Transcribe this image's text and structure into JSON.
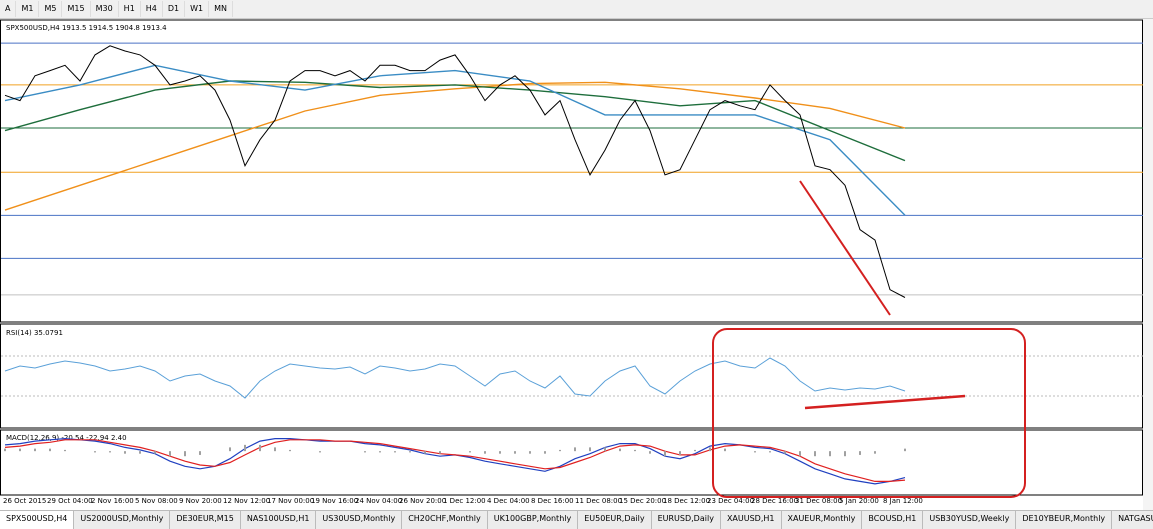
{
  "toolbar": {
    "font_button": "A",
    "timeframes": [
      "M1",
      "M5",
      "M15",
      "M30",
      "H1",
      "H4",
      "D1",
      "W1",
      "MN"
    ]
  },
  "chart_data": [
    {
      "type": "line",
      "title": "SPX500USD,H4  1913.5 1914.5 1904.8 1913.4",
      "color": "#000000",
      "values": [
        2068,
        2064,
        2083,
        2087,
        2091,
        2079,
        2099,
        2106,
        2102,
        2099,
        2091,
        2076,
        2079,
        2083,
        2072,
        2049,
        2014,
        2034,
        2049,
        2079,
        2087,
        2087,
        2083,
        2087,
        2079,
        2091,
        2091,
        2087,
        2087,
        2095,
        2099,
        2083,
        2064,
        2076,
        2083,
        2072,
        2053,
        2064,
        2034,
        2007,
        2026,
        2049,
        2064,
        2041,
        2007,
        2011,
        2034,
        2057,
        2064,
        2060,
        2057,
        2076,
        2064,
        2053,
        2014,
        2011,
        1999,
        1965,
        1957,
        1919,
        1913
      ],
      "ylim": [
        1895,
        2125
      ],
      "levels": [
        {
          "value": 2108,
          "color": "#4a72c4"
        },
        {
          "value": 2076,
          "color": "#f0a020"
        },
        {
          "value": 2043,
          "color": "#1e6e3c"
        },
        {
          "value": 2009,
          "color": "#f0a020"
        },
        {
          "value": 1976,
          "color": "#4a72c4"
        },
        {
          "value": 1943,
          "color": "#4a72c4"
        },
        {
          "value": 1915,
          "color": "#c0c0c0"
        }
      ],
      "moving_averages": [
        {
          "color": "#f0901a",
          "x": [
            0,
            5,
            10,
            15,
            20,
            25,
            30,
            35,
            40,
            45,
            50,
            55,
            60
          ],
          "values": [
            1980,
            1999,
            2018,
            2037,
            2056,
            2068,
            2073,
            2077,
            2078,
            2073,
            2066,
            2058,
            2043
          ]
        },
        {
          "color": "#1e6e3c",
          "x": [
            0,
            5,
            10,
            15,
            20,
            25,
            30,
            35,
            40,
            45,
            50,
            55,
            60
          ],
          "values": [
            2041,
            2057,
            2072,
            2079,
            2078,
            2074,
            2076,
            2072,
            2067,
            2060,
            2064,
            2041,
            2018
          ]
        },
        {
          "color": "#3a8cc4",
          "x": [
            0,
            5,
            10,
            15,
            20,
            25,
            30,
            35,
            40,
            45,
            50,
            55,
            60
          ],
          "values": [
            2064,
            2076,
            2091,
            2079,
            2072,
            2083,
            2087,
            2079,
            2053,
            2053,
            2053,
            2034,
            1976
          ]
        }
      ]
    },
    {
      "type": "line",
      "title": "RSI(14) 35.0791",
      "color": "#5aa0d8",
      "values": [
        55,
        60,
        58,
        62,
        65,
        63,
        60,
        55,
        57,
        60,
        55,
        45,
        50,
        52,
        45,
        40,
        28,
        45,
        55,
        62,
        60,
        58,
        57,
        59,
        52,
        60,
        58,
        55,
        57,
        62,
        60,
        50,
        40,
        52,
        55,
        45,
        38,
        50,
        32,
        30,
        45,
        55,
        60,
        40,
        32,
        45,
        55,
        62,
        65,
        60,
        58,
        68,
        60,
        45,
        35,
        38,
        36,
        38,
        37,
        40,
        35
      ],
      "ylim": [
        0,
        100
      ],
      "levels": [
        70,
        30
      ]
    },
    {
      "type": "macd",
      "title": "MACD(12,26,9) -20.54 -22.94 2.40",
      "series": [
        {
          "color": "#2040c0",
          "values": [
            5,
            6,
            8,
            9,
            10,
            9,
            8,
            6,
            3,
            1,
            -2,
            -8,
            -12,
            -14,
            -12,
            -6,
            2,
            8,
            10,
            10,
            9,
            8,
            8,
            8,
            6,
            5,
            3,
            1,
            -2,
            -4,
            -3,
            -5,
            -8,
            -10,
            -12,
            -14,
            -16,
            -12,
            -6,
            -2,
            3,
            6,
            6,
            2,
            -4,
            -6,
            -2,
            4,
            6,
            5,
            3,
            2,
            -2,
            -8,
            -14,
            -18,
            -22,
            -24,
            -26,
            -24,
            -21
          ]
        },
        {
          "color": "#e02020",
          "values": [
            3,
            4,
            6,
            7,
            9,
            9,
            9,
            7,
            5,
            3,
            0,
            -4,
            -8,
            -11,
            -12,
            -9,
            -3,
            3,
            7,
            9,
            9,
            9,
            8,
            8,
            7,
            6,
            4,
            2,
            0,
            -2,
            -3,
            -4,
            -6,
            -8,
            -10,
            -12,
            -14,
            -13,
            -9,
            -5,
            0,
            4,
            5,
            4,
            0,
            -3,
            -3,
            1,
            4,
            5,
            4,
            3,
            0,
            -4,
            -10,
            -14,
            -18,
            -21,
            -24,
            -24,
            -23
          ]
        },
        {
          "color": "#a0a0a0",
          "bars": true,
          "values": [
            2,
            2,
            2,
            2,
            1,
            0,
            -1,
            -1,
            -2,
            -2,
            -2,
            -4,
            -4,
            -3,
            0,
            3,
            5,
            5,
            3,
            1,
            0,
            -1,
            0,
            0,
            -1,
            -1,
            -1,
            -1,
            -2,
            -2,
            0,
            -1,
            -2,
            -2,
            -2,
            -2,
            -2,
            1,
            3,
            3,
            3,
            2,
            1,
            -2,
            -4,
            -3,
            1,
            3,
            2,
            0,
            -1,
            -1,
            -2,
            -4,
            -4,
            -4,
            -4,
            -3,
            -2,
            0,
            2
          ]
        }
      ],
      "ylim": [
        -34,
        16
      ]
    }
  ],
  "x_labels": [
    "26 Oct 2015",
    "29 Oct 04:00",
    "2 Nov 16:00",
    "5 Nov 08:00",
    "9 Nov 20:00",
    "12 Nov 12:00",
    "17 Nov 00:00",
    "19 Nov 16:00",
    "24 Nov 04:00",
    "26 Nov 20:00",
    "1 Dec 12:00",
    "4 Dec 04:00",
    "8 Dec 16:00",
    "11 Dec 08:00",
    "15 Dec 20:00",
    "18 Dec 12:00",
    "23 Dec 04:00",
    "28 Dec 16:00",
    "31 Dec 08:00",
    "5 Jan 20:00",
    "8 Jan 12:00"
  ],
  "tabs": [
    "SPX500USD,H4",
    "US2000USD,Monthly",
    "DE30EUR,M15",
    "NAS100USD,H1",
    "US30USD,Monthly",
    "CH20CHF,Monthly",
    "UK100GBP,Monthly",
    "EU50EUR,Daily",
    "EURUSD,Daily",
    "XAUUSD,H1",
    "XAUEUR,Monthly",
    "BCOUSD,H1",
    "USB30YUSD,Weekly",
    "DE10YBEUR,Monthly",
    "NATGASUSD,Daily"
  ]
}
